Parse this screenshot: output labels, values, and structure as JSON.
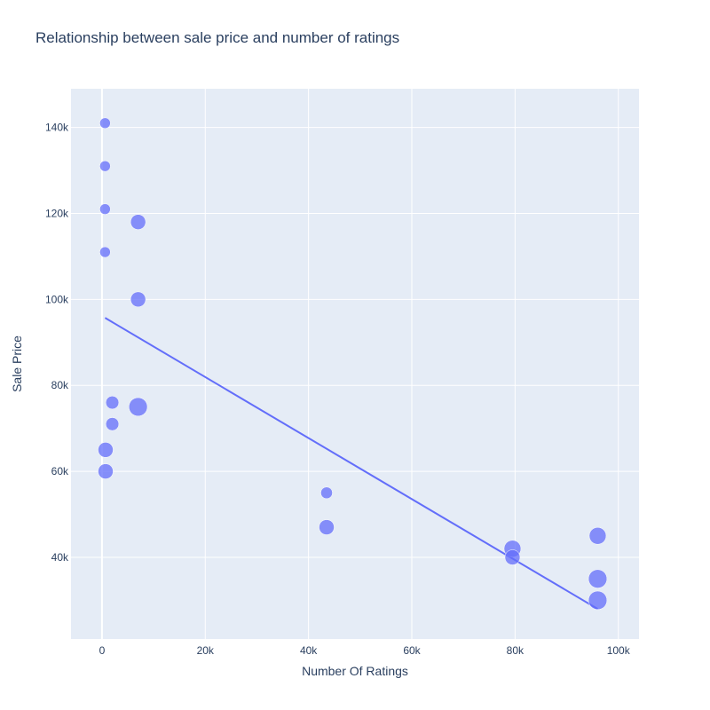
{
  "chart_data": {
    "type": "scatter",
    "title": "Relationship between sale price and number of ratings",
    "xlabel": "Number Of Ratings",
    "ylabel": "Sale Price",
    "xlim": [
      -6000,
      104000
    ],
    "ylim": [
      21000,
      149000
    ],
    "x_ticks": [
      0,
      20000,
      40000,
      60000,
      80000,
      100000
    ],
    "x_tick_labels": [
      "0",
      "20k",
      "40k",
      "60k",
      "80k",
      "100k"
    ],
    "y_ticks": [
      40000,
      60000,
      80000,
      100000,
      120000,
      140000
    ],
    "y_tick_labels": [
      "40k",
      "60k",
      "80k",
      "100k",
      "120k",
      "140k"
    ],
    "grid": true,
    "marker_color": "#636efa",
    "background_color": "#e5ecf6",
    "points": [
      {
        "x": 600,
        "y": 141000,
        "size": 1
      },
      {
        "x": 600,
        "y": 131000,
        "size": 1
      },
      {
        "x": 600,
        "y": 121000,
        "size": 1
      },
      {
        "x": 600,
        "y": 111000,
        "size": 1
      },
      {
        "x": 7000,
        "y": 118000,
        "size": 2
      },
      {
        "x": 7000,
        "y": 100000,
        "size": 2
      },
      {
        "x": 2000,
        "y": 76000,
        "size": 1.5
      },
      {
        "x": 2000,
        "y": 71000,
        "size": 1.5
      },
      {
        "x": 7000,
        "y": 75000,
        "size": 3
      },
      {
        "x": 700,
        "y": 65000,
        "size": 2
      },
      {
        "x": 700,
        "y": 60000,
        "size": 2
      },
      {
        "x": 43500,
        "y": 55000,
        "size": 1.2
      },
      {
        "x": 43500,
        "y": 47000,
        "size": 2
      },
      {
        "x": 79500,
        "y": 42000,
        "size": 2.5
      },
      {
        "x": 79500,
        "y": 40000,
        "size": 2
      },
      {
        "x": 96000,
        "y": 45000,
        "size": 2.5
      },
      {
        "x": 96000,
        "y": 35000,
        "size": 3
      },
      {
        "x": 96000,
        "y": 30000,
        "size": 3
      }
    ],
    "trendline": {
      "x": [
        600,
        96000
      ],
      "y": [
        95700,
        28000
      ]
    }
  }
}
